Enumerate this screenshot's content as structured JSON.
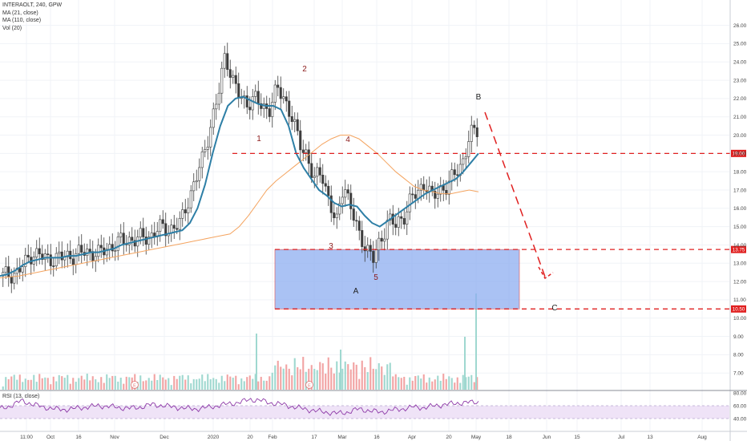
{
  "legend": {
    "symbol": "INTERAOLT, 240, GPW",
    "ma21": "MA (21, close)",
    "ma110": "MA (110, close)",
    "vol": "Vol (20)",
    "rsi": "RSI (13, close)"
  },
  "chart_data": {
    "type": "candlestick",
    "symbol": "INTERAOLT",
    "interval": "240",
    "exchange": "GPW",
    "ylim": [
      6.5,
      27.0
    ],
    "y_ticks": [
      "7.00",
      "8.00",
      "9.00",
      "10.00",
      "11.00",
      "12.00",
      "13.00",
      "14.00",
      "15.00",
      "16.00",
      "17.00",
      "18.00",
      "19.00",
      "20.00",
      "21.00",
      "22.00",
      "23.00",
      "24.00",
      "25.00",
      "26.00"
    ],
    "x_ticks": [
      "11:00",
      "Oct",
      "16",
      "Nov",
      "Dec",
      "2020",
      "20",
      "Feb",
      "17",
      "Mar",
      "16",
      "Apr",
      "20",
      "May",
      "18",
      "Jun",
      "15",
      "Jul",
      "13",
      "Aug"
    ],
    "price_labels": [
      {
        "value": 19.0,
        "text": "19.00"
      },
      {
        "value": 13.75,
        "text": "13.75"
      },
      {
        "value": 10.5,
        "text": "10.50"
      }
    ],
    "price_path": [
      12.3,
      12.4,
      12.5,
      13.0,
      13.6,
      13.4,
      13.2,
      13.3,
      13.3,
      13.4,
      13.5,
      13.6,
      13.6,
      13.5,
      13.8,
      14.0,
      14.2,
      14.3,
      14.3,
      14.4,
      14.5,
      14.9,
      14.9,
      14.9,
      15.2,
      16.5,
      17.5,
      18.8,
      20.5,
      22.0,
      24.5,
      23.0,
      22.0,
      21.8,
      22.0,
      21.5,
      21.5,
      22.5,
      22.0,
      21.0,
      19.5,
      19.0,
      17.5,
      18.0,
      16.5,
      15.0,
      17.5,
      16.0,
      14.5,
      14.0,
      13.2,
      14.2,
      15.5,
      15.0,
      15.5,
      16.5,
      16.8,
      17.5,
      16.5,
      17.0,
      17.3,
      17.8,
      18.5,
      20.0,
      20.2
    ],
    "ma21_path": [
      12.3,
      12.4,
      12.6,
      12.9,
      13.1,
      13.2,
      13.3,
      13.3,
      13.3,
      13.4,
      13.4,
      13.5,
      13.6,
      13.6,
      13.7,
      13.8,
      14.0,
      14.1,
      14.2,
      14.3,
      14.4,
      14.5,
      14.6,
      14.7,
      14.8,
      15.2,
      16.0,
      17.3,
      19.0,
      20.5,
      21.6,
      22.0,
      22.1,
      21.9,
      21.7,
      21.6,
      21.6,
      21.4,
      20.5,
      19.0,
      18.2,
      17.6,
      17.0,
      16.7,
      16.3,
      16.1,
      16.2,
      16.1,
      15.6,
      15.2,
      15.0,
      15.3,
      15.6,
      15.9,
      16.2,
      16.5,
      16.8,
      17.0,
      17.2,
      17.4,
      17.6,
      18.0,
      18.5,
      19.0
    ],
    "ma110_path": [
      12.2,
      12.25,
      12.3,
      12.4,
      12.5,
      12.6,
      12.7,
      12.8,
      12.9,
      13.0,
      13.1,
      13.2,
      13.3,
      13.4,
      13.5,
      13.6,
      13.7,
      13.8,
      13.9,
      14.0,
      14.1,
      14.2,
      14.3,
      14.4,
      14.5,
      14.6,
      15.0,
      15.6,
      16.3,
      17.0,
      17.5,
      17.9,
      18.3,
      18.7,
      19.1,
      19.5,
      19.8,
      20.0,
      20.0,
      19.8,
      19.4,
      19.0,
      18.5,
      18.0,
      17.6,
      17.2,
      17.0,
      16.9,
      16.8,
      16.8,
      16.9,
      17.0,
      16.9
    ],
    "rsi_values": [
      55,
      60,
      68,
      62,
      58,
      55,
      54,
      56,
      58,
      60,
      59,
      57,
      56,
      58,
      62,
      60,
      58,
      56,
      55,
      57,
      60,
      63,
      65,
      70,
      68,
      64,
      62,
      58,
      55,
      52,
      50,
      48,
      50,
      55,
      52,
      50,
      53,
      55,
      58,
      57,
      60,
      62,
      64,
      65,
      66
    ],
    "rsi_ylim": [
      30,
      80
    ],
    "rsi_ticks": [
      "40.00",
      "60.00",
      "80.00"
    ],
    "wave_labels": [
      "1",
      "2",
      "3",
      "4",
      "5"
    ],
    "abc_labels": [
      "A",
      "B",
      "C"
    ],
    "target_box": {
      "top": 13.75,
      "bottom": 10.5
    }
  }
}
